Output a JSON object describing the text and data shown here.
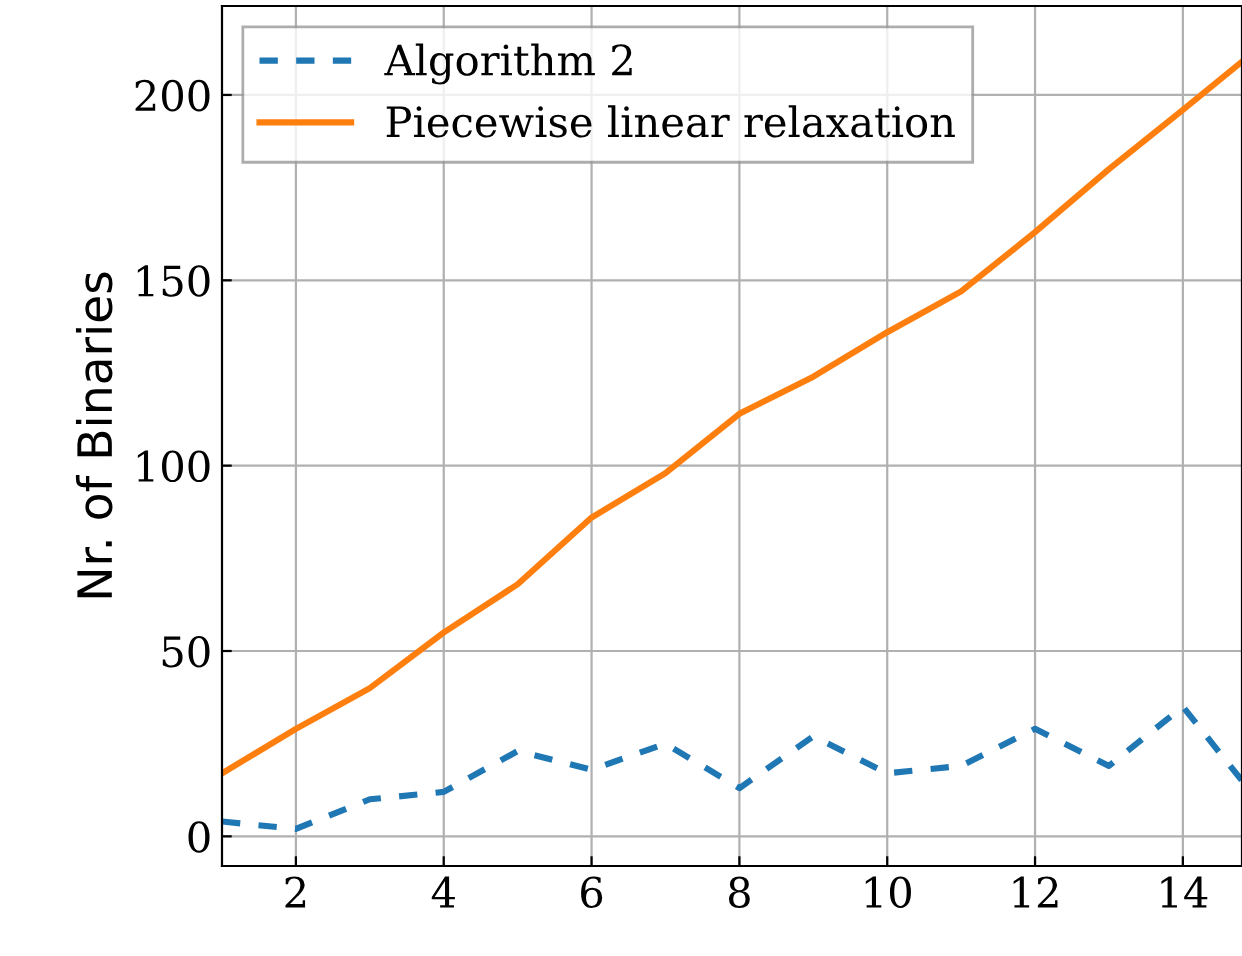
{
  "chart_data": {
    "type": "line",
    "ylabel": "Nr. of Binaries",
    "x": [
      1,
      2,
      3,
      4,
      5,
      6,
      7,
      8,
      9,
      10,
      11,
      12,
      13,
      14,
      14.8
    ],
    "series": [
      {
        "name": "Algorithm 2",
        "color": "#1f77b4",
        "line_style": "dashed",
        "values": [
          4,
          2,
          10,
          12,
          23,
          18,
          25,
          13,
          27,
          17,
          19,
          29,
          19,
          35,
          15
        ]
      },
      {
        "name": "Piecewise linear relaxation",
        "color": "#ff7f0e",
        "line_style": "solid",
        "values": [
          17,
          29,
          40,
          55,
          68,
          86,
          98,
          114,
          124,
          136,
          147,
          163,
          180,
          196,
          209
        ]
      }
    ],
    "xlim": [
      1,
      14.8
    ],
    "xticks": [
      2,
      4,
      6,
      8,
      10,
      12,
      14
    ],
    "ylim": [
      -8,
      224
    ],
    "yticks": [
      0,
      50,
      100,
      150,
      200
    ],
    "grid": true,
    "legend": "top left",
    "marker": "none"
  }
}
